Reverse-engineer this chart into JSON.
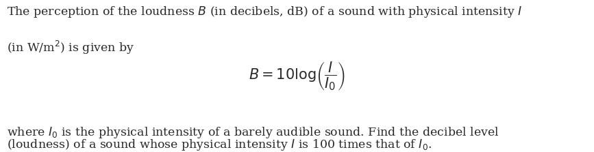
{
  "background_color": "#ffffff",
  "text_color": "#2a2a2a",
  "line1": "The perception of the loudness $B$ (in decibels, dB) of a sound with physical intensity $I$",
  "line2": "(in W/m$^2$) is given by",
  "formula": "$B = 10 \\log\\!\\left(\\dfrac{I}{I_0}\\right)$",
  "line3": "where $I_0$ is the physical intensity of a barely audible sound. Find the decibel level",
  "line4": "(loudness) of a sound whose physical intensity $I$ is 100 times that of $I_0$.",
  "font_size_text": 12.5,
  "font_size_formula": 15
}
